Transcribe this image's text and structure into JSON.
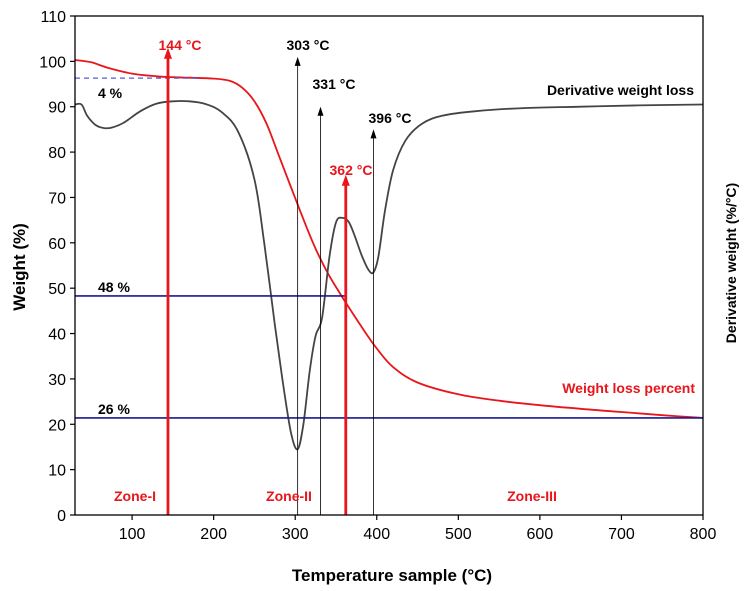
{
  "chart_data": {
    "type": "line",
    "xlabel": "Temperature sample (°C)",
    "ylabel": "Weight (%)",
    "ylabel_right": "Derivative weight (%/°C)",
    "xlim": [
      30,
      800
    ],
    "ylim": [
      0,
      110
    ],
    "x_ticks": [
      100,
      200,
      300,
      400,
      500,
      600,
      700,
      800
    ],
    "y_ticks": [
      0,
      10,
      20,
      30,
      40,
      50,
      60,
      70,
      80,
      90,
      100,
      110
    ],
    "series": [
      {
        "name": "Weight loss percent",
        "color": "#e8151b",
        "x": [
          30,
          50,
          70,
          100,
          130,
          150,
          170,
          200,
          220,
          235,
          250,
          265,
          280,
          295,
          310,
          325,
          340,
          355,
          370,
          385,
          400,
          420,
          450,
          500,
          550,
          600,
          650,
          700,
          750,
          800
        ],
        "y": [
          100.3,
          99.8,
          98.6,
          97.3,
          96.7,
          96.5,
          96.4,
          96.2,
          95.7,
          94.2,
          91.2,
          86.2,
          79.2,
          72.2,
          65.2,
          58.7,
          53.3,
          48.8,
          44.6,
          40.5,
          36.7,
          32.6,
          29.2,
          26.6,
          25.2,
          24.2,
          23.4,
          22.7,
          22.0,
          21.4
        ]
      },
      {
        "name": "Derivative weight loss",
        "color": "#444444",
        "x": [
          30,
          38,
          45,
          55,
          65,
          75,
          90,
          110,
          130,
          150,
          170,
          190,
          210,
          230,
          250,
          262,
          275,
          285,
          295,
          303,
          310,
          318,
          325,
          333,
          342,
          350,
          358,
          366,
          374,
          382,
          390,
          396,
          402,
          410,
          420,
          435,
          455,
          480,
          520,
          580,
          650,
          720,
          800
        ],
        "y": [
          90.5,
          90.5,
          88,
          86,
          85.3,
          85.4,
          86.5,
          89,
          90.7,
          91.2,
          91.2,
          90.6,
          88.8,
          84.5,
          74,
          60,
          42,
          29,
          18,
          14.5,
          20,
          32,
          39.5,
          43.5,
          57,
          64.5,
          65.5,
          64.5,
          61,
          57,
          54,
          53.5,
          57,
          67,
          76,
          82.5,
          86.2,
          88,
          89,
          89.7,
          90,
          90.3,
          90.5
        ]
      }
    ],
    "hlines": [
      {
        "label": "4 %",
        "y": 96.3,
        "x_start": 30,
        "x_end": 183,
        "style": "dashed"
      },
      {
        "label": "48 %",
        "y": 48.3,
        "x_start": 30,
        "x_end": 362,
        "style": "solid"
      },
      {
        "label": "26 %",
        "y": 21.4,
        "x_start": 30,
        "x_end": 800,
        "style": "solid"
      }
    ],
    "vmarkers": [
      {
        "label": "144 °C",
        "x": 144,
        "top": 103,
        "color": "#e8151b",
        "thick": true
      },
      {
        "label": "303 °C",
        "x": 303,
        "top": 101,
        "color": "#000000",
        "thick": false
      },
      {
        "label": "331 °C",
        "x": 331,
        "top": 90,
        "color": "#000000",
        "thick": false
      },
      {
        "label": "362 °C",
        "x": 362,
        "top": 75,
        "color": "#e8151b",
        "thick": true
      },
      {
        "label": "396 °C",
        "x": 396,
        "top": 85,
        "color": "#000000",
        "thick": false
      }
    ],
    "zones": [
      {
        "label": "Zone-I",
        "x": 83
      },
      {
        "label": "Zone-II",
        "x": 298
      },
      {
        "label": "Zone-III",
        "x": 578
      }
    ]
  }
}
